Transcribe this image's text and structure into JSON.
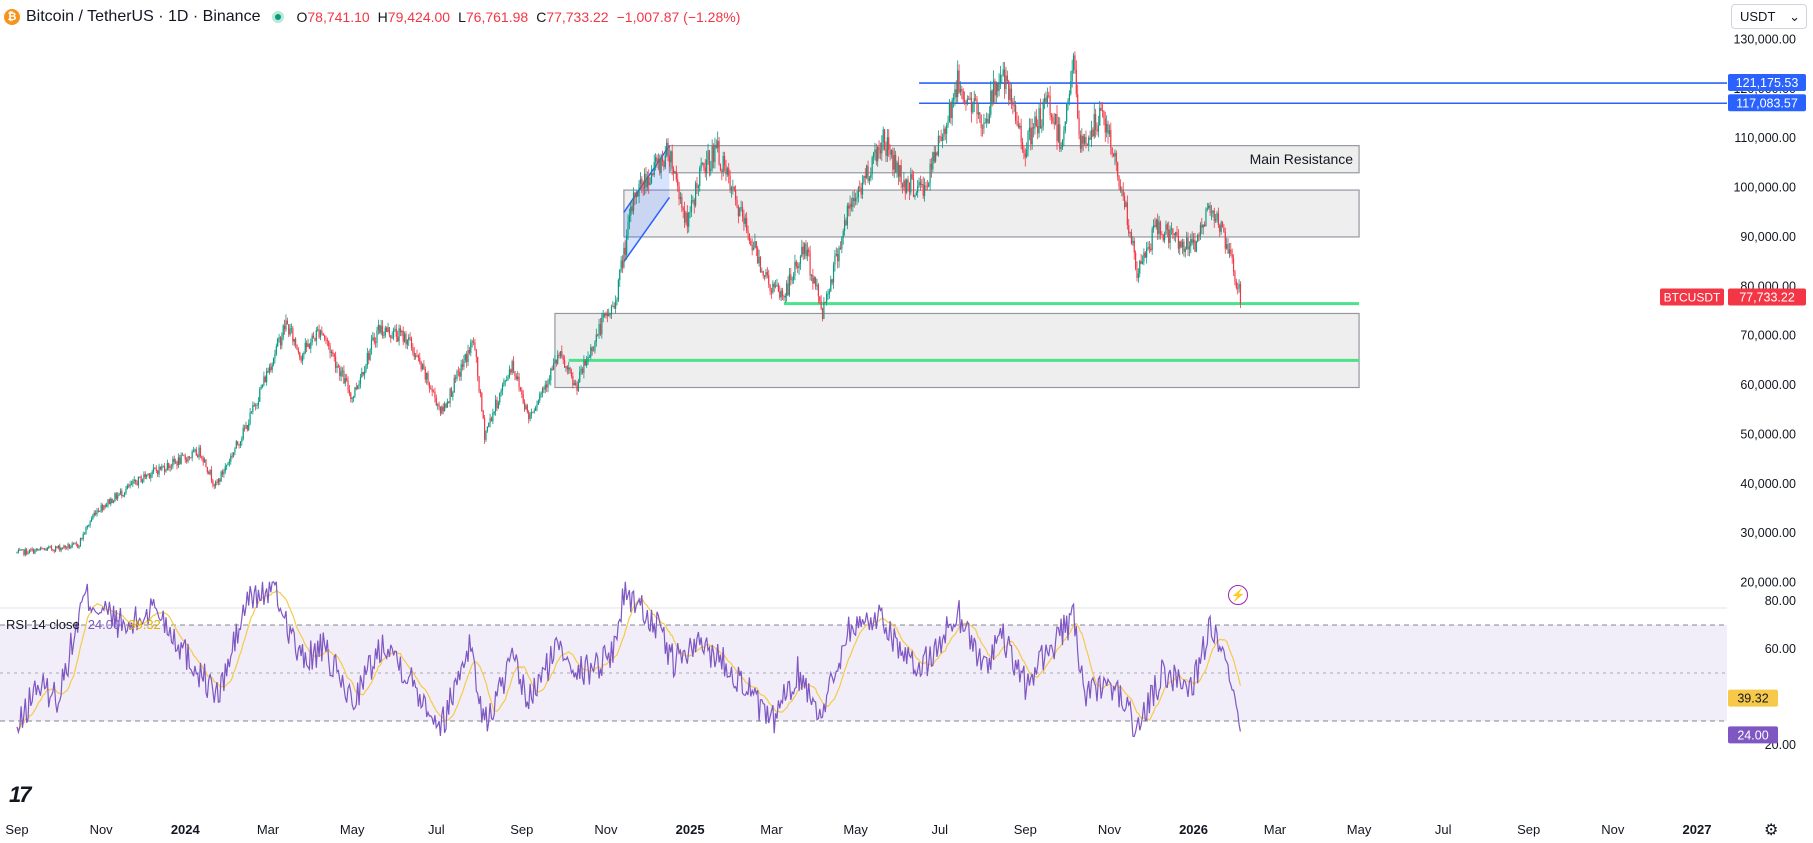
{
  "header": {
    "symbol": "Bitcoin / TetherUS · 1D · Binance",
    "coin_glyph": "₿",
    "ohlc": [
      {
        "key": "O",
        "value": "78,741.10"
      },
      {
        "key": "H",
        "value": "79,424.00"
      },
      {
        "key": "L",
        "value": "76,761.98"
      },
      {
        "key": "C",
        "value": "77,733.22"
      }
    ],
    "change": "−1,007.87 (−1.28%)"
  },
  "currency": {
    "label": "USDT",
    "caret": "⌄"
  },
  "rsi": {
    "label": "RSI 14 close",
    "value": "24.00",
    "ma_value": "39.32"
  },
  "logo": "17",
  "icons": {
    "settings": "gear-icon",
    "alert": "lightning-icon"
  },
  "colors": {
    "up": "#089981",
    "down": "#f23645",
    "rsi": "#7e57c2",
    "rsi_ma": "#f7c94a",
    "level_blue": "#2962ff",
    "level_green": "#4ce18b"
  },
  "chart_data": {
    "type": "candlestick",
    "price_axis": {
      "min": 20000,
      "max": 130000,
      "step": 10000,
      "ticks": [
        "130,000.00",
        "120,000.00",
        "110,000.00",
        "100,000.00",
        "90,000.00",
        "80,000.00",
        "70,000.00",
        "60,000.00",
        "50,000.00",
        "40,000.00",
        "30,000.00",
        "20,000.00"
      ]
    },
    "time_axis": {
      "labels": [
        "Sep",
        "Nov",
        "2024",
        "Mar",
        "May",
        "Jul",
        "Sep",
        "Nov",
        "2025",
        "Mar",
        "May",
        "Jul",
        "Sep",
        "Nov",
        "2026",
        "Mar",
        "May",
        "Jul",
        "Sep",
        "Nov",
        "2027"
      ],
      "bold": [
        "2024",
        "2025",
        "2026",
        "2027"
      ]
    },
    "path": [
      [
        "2023-09-01",
        26000
      ],
      [
        "2023-10-15",
        27500
      ],
      [
        "2023-10-28",
        34500
      ],
      [
        "2023-12-05",
        42000
      ],
      [
        "2024-01-12",
        46500
      ],
      [
        "2024-01-23",
        39500
      ],
      [
        "2024-02-15",
        52000
      ],
      [
        "2024-03-14",
        72500
      ],
      [
        "2024-03-25",
        66000
      ],
      [
        "2024-04-08",
        71500
      ],
      [
        "2024-05-01",
        57500
      ],
      [
        "2024-05-20",
        71500
      ],
      [
        "2024-06-10",
        69500
      ],
      [
        "2024-07-05",
        54500
      ],
      [
        "2024-07-28",
        69000
      ],
      [
        "2024-08-05",
        50000
      ],
      [
        "2024-08-25",
        64500
      ],
      [
        "2024-09-06",
        53500
      ],
      [
        "2024-09-28",
        66000
      ],
      [
        "2024-10-10",
        59500
      ],
      [
        "2024-10-29",
        72500
      ],
      [
        "2024-11-07",
        76000
      ],
      [
        "2024-11-22",
        99000
      ],
      [
        "2024-12-17",
        107500
      ],
      [
        "2024-12-30",
        92000
      ],
      [
        "2025-01-07",
        102000
      ],
      [
        "2025-01-20",
        108000
      ],
      [
        "2025-02-03",
        97000
      ],
      [
        "2025-02-28",
        80000
      ],
      [
        "2025-03-10",
        78000
      ],
      [
        "2025-03-25",
        88000
      ],
      [
        "2025-04-07",
        75000
      ],
      [
        "2025-04-25",
        94500
      ],
      [
        "2025-05-21",
        110000
      ],
      [
        "2025-06-05",
        101000
      ],
      [
        "2025-06-20",
        99500
      ],
      [
        "2025-07-14",
        121000
      ],
      [
        "2025-08-02",
        113000
      ],
      [
        "2025-08-14",
        123500
      ],
      [
        "2025-09-01",
        108000
      ],
      [
        "2025-09-18",
        117500
      ],
      [
        "2025-09-27",
        109000
      ],
      [
        "2025-10-06",
        125500
      ],
      [
        "2025-10-11",
        108000
      ],
      [
        "2025-10-27",
        115000
      ],
      [
        "2025-11-10",
        100000
      ],
      [
        "2025-11-21",
        82500
      ],
      [
        "2025-12-05",
        92000
      ],
      [
        "2025-12-31",
        87500
      ],
      [
        "2026-01-14",
        97000
      ],
      [
        "2026-01-26",
        87000
      ],
      [
        "2026-02-04",
        77733
      ]
    ],
    "zones": [
      {
        "from": "2024-12-17",
        "to": "2026-05-01",
        "low": 103000,
        "high": 108500,
        "label": "Main Resistance"
      },
      {
        "from": "2024-11-14",
        "to": "2026-05-01",
        "low": 90000,
        "high": 99500,
        "label": ""
      },
      {
        "from": "2024-09-25",
        "to": "2026-05-01",
        "low": 59500,
        "high": 74500,
        "label": ""
      }
    ],
    "channel": {
      "upper": [
        [
          "2024-11-14",
          95000
        ],
        [
          "2024-12-17",
          108500
        ]
      ],
      "lower": [
        [
          "2024-11-14",
          85000
        ],
        [
          "2024-12-17",
          98000
        ]
      ]
    },
    "lines": [
      {
        "price": 121175.53,
        "label": "121,175.53",
        "color": "#2962ff",
        "from": "2025-06-16"
      },
      {
        "price": 117083.57,
        "label": "117,083.57",
        "color": "#2962ff",
        "from": "2025-06-16"
      },
      {
        "price": 76500,
        "label": "",
        "color": "#4ce18b",
        "from": "2025-03-10",
        "to": "2026-05-01"
      },
      {
        "price": 65000,
        "label": "",
        "color": "#4ce18b",
        "from": "2024-10-05",
        "to": "2026-05-01"
      }
    ],
    "last_price": {
      "symbol": "BTCUSDT",
      "price": 77733.22,
      "label": "77,733.22"
    },
    "rsi_axis": {
      "min": 16,
      "max": 88,
      "ticks": [
        "80.00",
        "60.00",
        "20.00"
      ],
      "bands": [
        30,
        50,
        70
      ]
    },
    "rsi_path": [
      [
        "2023-09-01",
        25
      ],
      [
        "2023-09-15",
        45
      ],
      [
        "2023-10-01",
        40
      ],
      [
        "2023-10-20",
        82
      ],
      [
        "2023-11-05",
        75
      ],
      [
        "2023-11-20",
        68
      ],
      [
        "2023-12-10",
        78
      ],
      [
        "2024-01-05",
        55
      ],
      [
        "2024-01-25",
        40
      ],
      [
        "2024-02-15",
        80
      ],
      [
        "2024-03-05",
        86
      ],
      [
        "2024-03-25",
        55
      ],
      [
        "2024-04-10",
        60
      ],
      [
        "2024-05-01",
        38
      ],
      [
        "2024-05-25",
        64
      ],
      [
        "2024-06-15",
        45
      ],
      [
        "2024-07-05",
        28
      ],
      [
        "2024-07-25",
        63
      ],
      [
        "2024-08-05",
        28
      ],
      [
        "2024-08-25",
        55
      ],
      [
        "2024-09-06",
        38
      ],
      [
        "2024-09-28",
        62
      ],
      [
        "2024-10-15",
        50
      ],
      [
        "2024-11-05",
        58
      ],
      [
        "2024-11-15",
        84
      ],
      [
        "2024-12-05",
        72
      ],
      [
        "2024-12-20",
        55
      ],
      [
        "2025-01-10",
        62
      ],
      [
        "2025-01-25",
        55
      ],
      [
        "2025-02-10",
        45
      ],
      [
        "2025-02-28",
        28
      ],
      [
        "2025-03-20",
        50
      ],
      [
        "2025-04-07",
        33
      ],
      [
        "2025-04-25",
        68
      ],
      [
        "2025-05-20",
        74
      ],
      [
        "2025-06-10",
        52
      ],
      [
        "2025-06-25",
        56
      ],
      [
        "2025-07-14",
        76
      ],
      [
        "2025-08-02",
        52
      ],
      [
        "2025-08-14",
        66
      ],
      [
        "2025-09-01",
        45
      ],
      [
        "2025-09-18",
        60
      ],
      [
        "2025-10-06",
        72
      ],
      [
        "2025-10-15",
        40
      ],
      [
        "2025-11-05",
        45
      ],
      [
        "2025-11-21",
        26
      ],
      [
        "2025-12-10",
        50
      ],
      [
        "2025-12-31",
        45
      ],
      [
        "2026-01-14",
        70
      ],
      [
        "2026-01-28",
        45
      ],
      [
        "2026-02-04",
        24
      ]
    ]
  }
}
